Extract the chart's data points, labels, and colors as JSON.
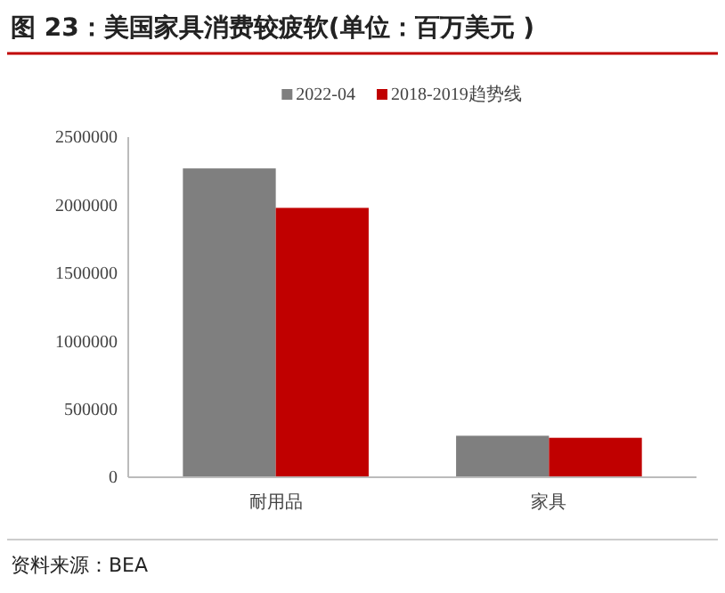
{
  "chart_data": {
    "type": "bar",
    "title": "图 23：美国家具消费较疲软(单位：百万美元 )",
    "categories": [
      "耐用品",
      "家具"
    ],
    "series": [
      {
        "name": "2022-04",
        "color": "#7f7f7f",
        "values": [
          2270000,
          305000
        ]
      },
      {
        "name": "2018-2019趋势线",
        "color": "#c00000",
        "values": [
          1980000,
          290000
        ]
      }
    ],
    "ylim": [
      0,
      2500000
    ],
    "yticks": [
      0,
      500000,
      1000000,
      1500000,
      2000000,
      2500000
    ],
    "grid": false,
    "legend": "top",
    "annotations": [
      "资料来源：BEA"
    ]
  }
}
